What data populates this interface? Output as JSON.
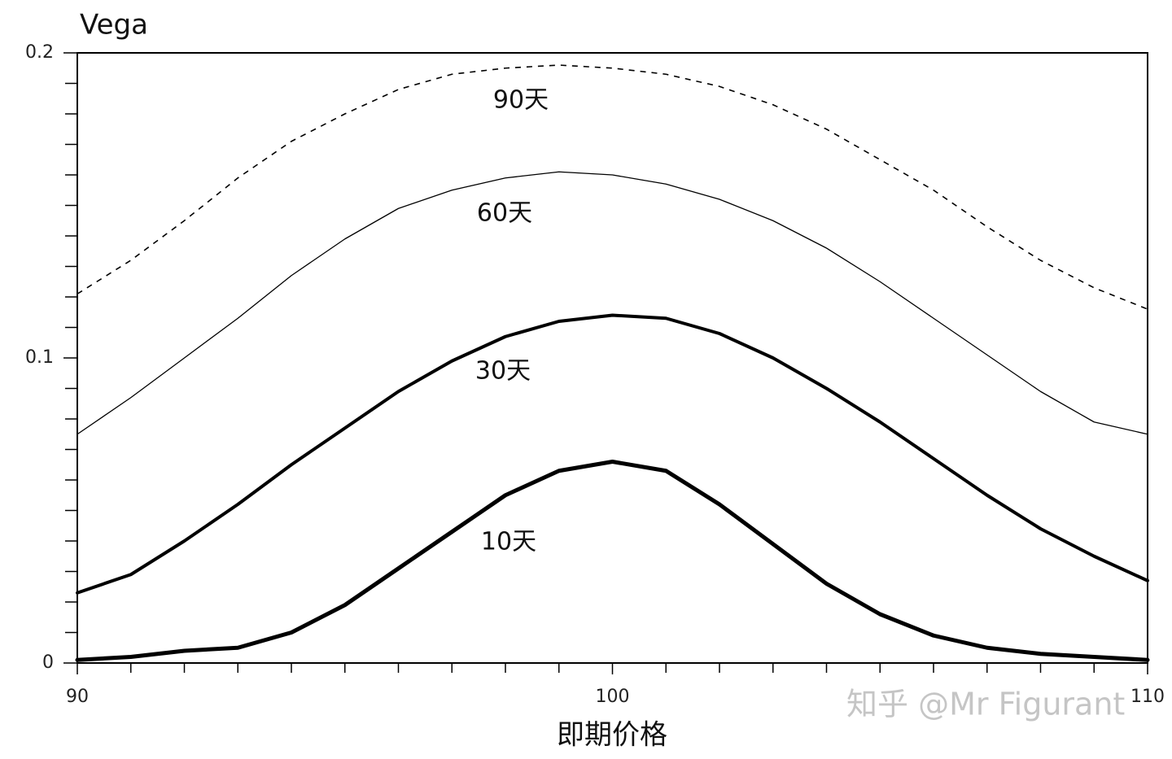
{
  "chart_data": {
    "type": "line",
    "title": "Vega",
    "x_label": "即期价格",
    "watermark": "知乎 @Mr Figurant",
    "x": [
      90,
      91,
      92,
      93,
      94,
      95,
      96,
      97,
      98,
      99,
      100,
      101,
      102,
      103,
      104,
      105,
      106,
      107,
      108,
      109,
      110
    ],
    "series": [
      {
        "name": "10天",
        "color": "#000000",
        "style": "solid",
        "values": [
          0.001,
          0.002,
          0.004,
          0.005,
          0.01,
          0.019,
          0.031,
          0.043,
          0.055,
          0.063,
          0.066,
          0.063,
          0.052,
          0.039,
          0.026,
          0.016,
          0.009,
          0.005,
          0.003,
          0.002,
          0.001
        ]
      },
      {
        "name": "30天",
        "color": "#000000",
        "style": "solid",
        "values": [
          0.023,
          0.029,
          0.04,
          0.052,
          0.065,
          0.077,
          0.089,
          0.099,
          0.107,
          0.112,
          0.114,
          0.113,
          0.108,
          0.1,
          0.09,
          0.079,
          0.067,
          0.055,
          0.044,
          0.035,
          0.027
        ]
      },
      {
        "name": "60天",
        "color": "#000000",
        "style": "solid",
        "values": [
          0.075,
          0.087,
          0.1,
          0.113,
          0.127,
          0.139,
          0.149,
          0.155,
          0.159,
          0.161,
          0.16,
          0.157,
          0.152,
          0.145,
          0.136,
          0.125,
          0.113,
          0.101,
          0.089,
          0.079,
          0.075
        ]
      },
      {
        "name": "90天",
        "color": "#000000",
        "style": "dashed",
        "values": [
          0.121,
          0.132,
          0.145,
          0.159,
          0.171,
          0.18,
          0.188,
          0.193,
          0.195,
          0.196,
          0.195,
          0.193,
          0.189,
          0.183,
          0.175,
          0.165,
          0.155,
          0.143,
          0.132,
          0.123,
          0.116
        ]
      }
    ],
    "xlim": [
      90,
      110
    ],
    "xticks": [
      90,
      100,
      110
    ],
    "xminorticks": [
      91,
      92,
      93,
      94,
      95,
      96,
      97,
      98,
      99,
      101,
      102,
      103,
      104,
      105,
      106,
      107,
      108,
      109
    ],
    "ylim": [
      0,
      0.2
    ],
    "yticks": [
      0,
      0.1,
      0.2
    ],
    "yminorticks": [
      0.01,
      0.02,
      0.03,
      0.04,
      0.05,
      0.06,
      0.07,
      0.08,
      0.09,
      0.11,
      0.12,
      0.13,
      0.14,
      0.15,
      0.16,
      0.17,
      0.18,
      0.19
    ],
    "grid": false
  }
}
